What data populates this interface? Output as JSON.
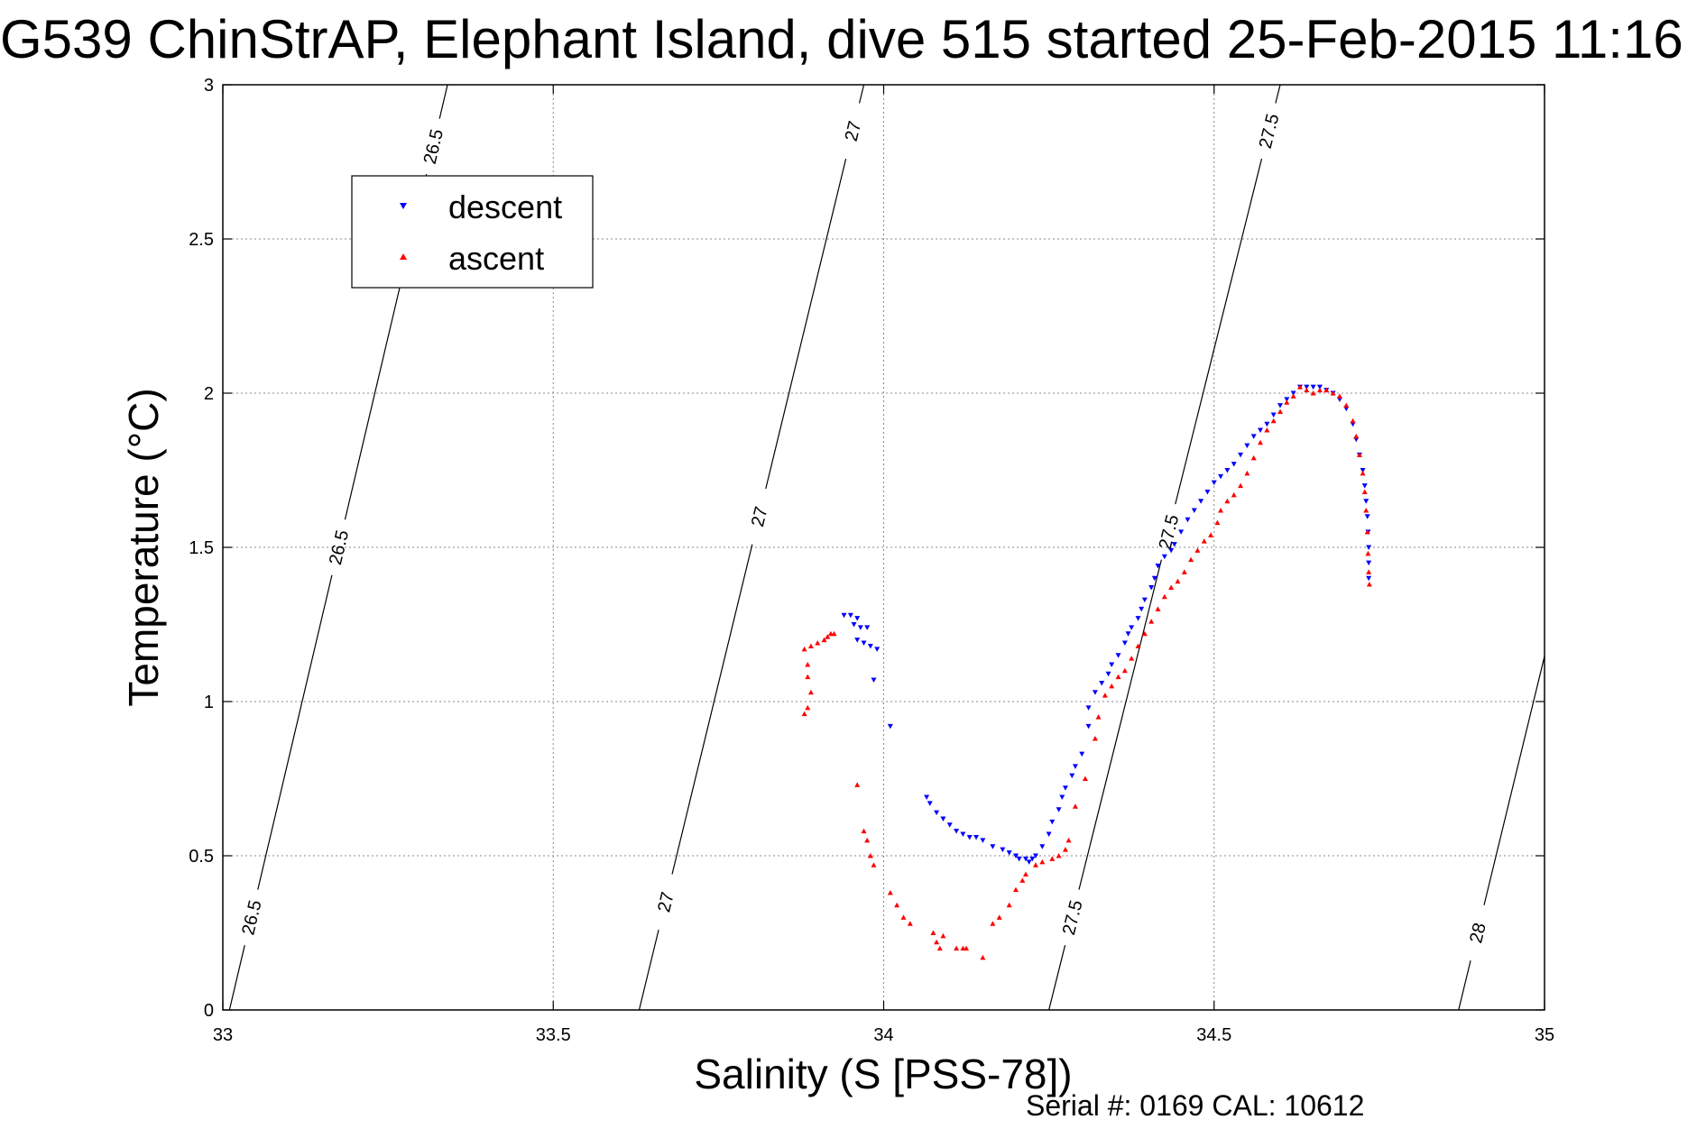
{
  "chart_data": {
    "type": "scatter",
    "title": "G539 ChinStrAP, Elephant Island, dive 515 started 25-Feb-2015 11:16",
    "xlabel": "Salinity (S [PSS-78])",
    "ylabel": "Temperature (°C)",
    "xlim": [
      33,
      35
    ],
    "ylim": [
      0,
      3
    ],
    "x_ticks": [
      "33",
      "33.5",
      "34",
      "34.5",
      "35"
    ],
    "y_ticks": [
      "0",
      "0.5",
      "1",
      "1.5",
      "2",
      "2.5",
      "3"
    ],
    "grid": true,
    "legend_position": "top-left",
    "footer": "Serial #: 0169 CAL: 10612",
    "series": [
      {
        "name": "descent",
        "color": "#0000ff",
        "marker": "triangle-down",
        "points": [
          [
            33.94,
            1.28
          ],
          [
            33.95,
            1.28
          ],
          [
            33.96,
            1.27
          ],
          [
            33.955,
            1.25
          ],
          [
            33.965,
            1.24
          ],
          [
            33.975,
            1.24
          ],
          [
            33.96,
            1.2
          ],
          [
            33.97,
            1.19
          ],
          [
            33.98,
            1.18
          ],
          [
            33.99,
            1.17
          ],
          [
            33.985,
            1.07
          ],
          [
            34.01,
            0.92
          ],
          [
            34.065,
            0.69
          ],
          [
            34.07,
            0.67
          ],
          [
            34.08,
            0.64
          ],
          [
            34.09,
            0.62
          ],
          [
            34.1,
            0.6
          ],
          [
            34.11,
            0.58
          ],
          [
            34.12,
            0.57
          ],
          [
            34.13,
            0.56
          ],
          [
            34.14,
            0.56
          ],
          [
            34.15,
            0.55
          ],
          [
            34.165,
            0.53
          ],
          [
            34.18,
            0.52
          ],
          [
            34.19,
            0.51
          ],
          [
            34.2,
            0.5
          ],
          [
            34.205,
            0.49
          ],
          [
            34.215,
            0.49
          ],
          [
            34.22,
            0.48
          ],
          [
            34.225,
            0.49
          ],
          [
            34.23,
            0.5
          ],
          [
            34.24,
            0.53
          ],
          [
            34.25,
            0.57
          ],
          [
            34.255,
            0.61
          ],
          [
            34.265,
            0.65
          ],
          [
            34.27,
            0.69
          ],
          [
            34.275,
            0.72
          ],
          [
            34.285,
            0.76
          ],
          [
            34.29,
            0.79
          ],
          [
            34.3,
            0.83
          ],
          [
            34.31,
            0.92
          ],
          [
            34.31,
            0.98
          ],
          [
            34.32,
            1.03
          ],
          [
            34.33,
            1.06
          ],
          [
            34.34,
            1.09
          ],
          [
            34.345,
            1.12
          ],
          [
            34.355,
            1.15
          ],
          [
            34.365,
            1.19
          ],
          [
            34.37,
            1.22
          ],
          [
            34.375,
            1.24
          ],
          [
            34.385,
            1.27
          ],
          [
            34.39,
            1.3
          ],
          [
            34.395,
            1.33
          ],
          [
            34.405,
            1.37
          ],
          [
            34.41,
            1.4
          ],
          [
            34.415,
            1.44
          ],
          [
            34.425,
            1.47
          ],
          [
            34.435,
            1.49
          ],
          [
            34.44,
            1.51
          ],
          [
            34.45,
            1.55
          ],
          [
            34.46,
            1.59
          ],
          [
            34.47,
            1.62
          ],
          [
            34.48,
            1.65
          ],
          [
            34.49,
            1.68
          ],
          [
            34.5,
            1.71
          ],
          [
            34.51,
            1.73
          ],
          [
            34.52,
            1.75
          ],
          [
            34.53,
            1.77
          ],
          [
            34.54,
            1.8
          ],
          [
            34.55,
            1.83
          ],
          [
            34.56,
            1.86
          ],
          [
            34.57,
            1.88
          ],
          [
            34.58,
            1.9
          ],
          [
            34.59,
            1.93
          ],
          [
            34.6,
            1.96
          ],
          [
            34.61,
            1.98
          ],
          [
            34.62,
            2.0
          ],
          [
            34.63,
            2.02
          ],
          [
            34.64,
            2.02
          ],
          [
            34.65,
            2.02
          ],
          [
            34.66,
            2.02
          ],
          [
            34.67,
            2.01
          ],
          [
            34.68,
            2.0
          ],
          [
            34.69,
            1.98
          ],
          [
            34.7,
            1.95
          ],
          [
            34.71,
            1.9
          ],
          [
            34.715,
            1.85
          ],
          [
            34.72,
            1.8
          ],
          [
            34.725,
            1.75
          ],
          [
            34.728,
            1.7
          ],
          [
            34.73,
            1.65
          ],
          [
            34.732,
            1.6
          ],
          [
            34.733,
            1.55
          ],
          [
            34.734,
            1.5
          ],
          [
            34.734,
            1.45
          ],
          [
            34.734,
            1.4
          ]
        ]
      },
      {
        "name": "ascent",
        "color": "#ff0000",
        "marker": "triangle-up",
        "points": [
          [
            33.88,
            0.96
          ],
          [
            33.885,
            0.98
          ],
          [
            33.89,
            1.03
          ],
          [
            33.885,
            1.08
          ],
          [
            33.885,
            1.12
          ],
          [
            33.88,
            1.17
          ],
          [
            33.89,
            1.18
          ],
          [
            33.9,
            1.19
          ],
          [
            33.91,
            1.2
          ],
          [
            33.915,
            1.21
          ],
          [
            33.92,
            1.22
          ],
          [
            33.925,
            1.22
          ],
          [
            33.96,
            0.73
          ],
          [
            33.97,
            0.58
          ],
          [
            33.975,
            0.55
          ],
          [
            33.98,
            0.5
          ],
          [
            33.985,
            0.47
          ],
          [
            34.01,
            0.38
          ],
          [
            34.02,
            0.34
          ],
          [
            34.03,
            0.3
          ],
          [
            34.04,
            0.28
          ],
          [
            34.075,
            0.25
          ],
          [
            34.08,
            0.22
          ],
          [
            34.085,
            0.2
          ],
          [
            34.09,
            0.24
          ],
          [
            34.11,
            0.2
          ],
          [
            34.12,
            0.2
          ],
          [
            34.125,
            0.2
          ],
          [
            34.15,
            0.17
          ],
          [
            34.165,
            0.28
          ],
          [
            34.175,
            0.3
          ],
          [
            34.19,
            0.34
          ],
          [
            34.2,
            0.39
          ],
          [
            34.21,
            0.42
          ],
          [
            34.215,
            0.44
          ],
          [
            34.23,
            0.47
          ],
          [
            34.24,
            0.48
          ],
          [
            34.255,
            0.49
          ],
          [
            34.265,
            0.5
          ],
          [
            34.275,
            0.52
          ],
          [
            34.28,
            0.55
          ],
          [
            34.29,
            0.66
          ],
          [
            34.305,
            0.75
          ],
          [
            34.32,
            0.88
          ],
          [
            34.325,
            0.95
          ],
          [
            34.335,
            1.02
          ],
          [
            34.345,
            1.05
          ],
          [
            34.355,
            1.08
          ],
          [
            34.365,
            1.1
          ],
          [
            34.375,
            1.14
          ],
          [
            34.385,
            1.18
          ],
          [
            34.395,
            1.22
          ],
          [
            34.405,
            1.26
          ],
          [
            34.415,
            1.3
          ],
          [
            34.425,
            1.34
          ],
          [
            34.435,
            1.37
          ],
          [
            34.445,
            1.39
          ],
          [
            34.455,
            1.42
          ],
          [
            34.465,
            1.46
          ],
          [
            34.475,
            1.49
          ],
          [
            34.485,
            1.52
          ],
          [
            34.495,
            1.54
          ],
          [
            34.505,
            1.58
          ],
          [
            34.51,
            1.62
          ],
          [
            34.52,
            1.65
          ],
          [
            34.53,
            1.67
          ],
          [
            34.54,
            1.7
          ],
          [
            34.55,
            1.74
          ],
          [
            34.56,
            1.79
          ],
          [
            34.57,
            1.84
          ],
          [
            34.58,
            1.88
          ],
          [
            34.59,
            1.91
          ],
          [
            34.6,
            1.94
          ],
          [
            34.61,
            1.97
          ],
          [
            34.62,
            1.99
          ],
          [
            34.63,
            2.02
          ],
          [
            34.64,
            2.01
          ],
          [
            34.65,
            2.0
          ],
          [
            34.66,
            2.01
          ],
          [
            34.67,
            2.01
          ],
          [
            34.68,
            2.0
          ],
          [
            34.69,
            1.99
          ],
          [
            34.7,
            1.96
          ],
          [
            34.71,
            1.91
          ],
          [
            34.715,
            1.86
          ],
          [
            34.72,
            1.8
          ],
          [
            34.725,
            1.74
          ],
          [
            34.728,
            1.68
          ],
          [
            34.73,
            1.62
          ],
          [
            34.732,
            1.55
          ],
          [
            34.733,
            1.48
          ],
          [
            34.734,
            1.42
          ],
          [
            34.735,
            1.38
          ]
        ]
      }
    ],
    "isopycnals": [
      {
        "label": "26.5",
        "x_at_ymin": 33.01,
        "x_at_ymax": 33.34,
        "label_positions": [
          0.3,
          1.5,
          2.8
        ]
      },
      {
        "label": "27",
        "x_at_ymin": 33.63,
        "x_at_ymax": 33.97,
        "label_positions": [
          0.35,
          1.6,
          2.85
        ]
      },
      {
        "label": "27.5",
        "x_at_ymin": 34.25,
        "x_at_ymax": 34.6,
        "label_positions": [
          0.3,
          1.55,
          2.85
        ]
      },
      {
        "label": "28",
        "x_at_ymin": 34.87,
        "x_at_ymax": 35.21,
        "label_positions": [
          0.25,
          1.5
        ]
      }
    ]
  }
}
